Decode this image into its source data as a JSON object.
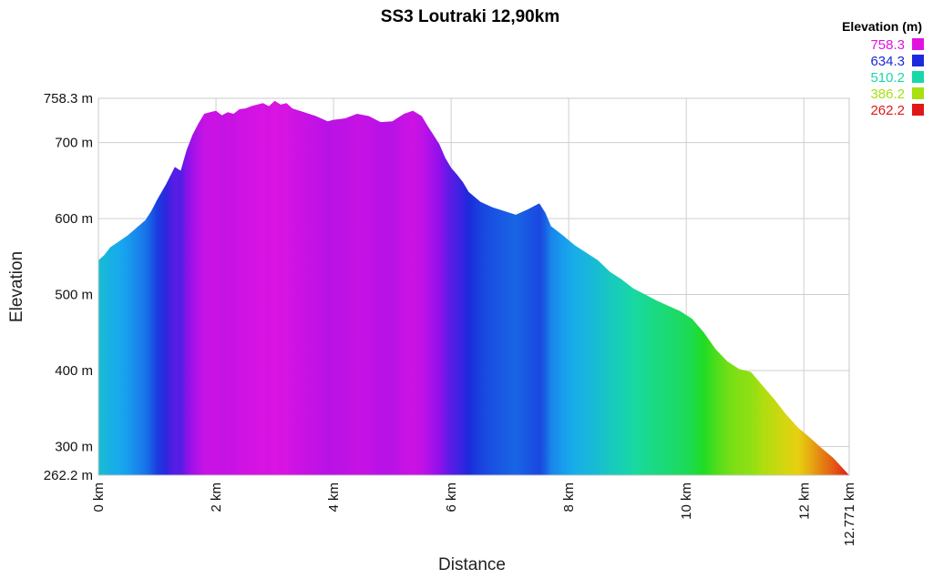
{
  "chart_data": {
    "type": "area",
    "title": "SS3 Loutraki 12,90km",
    "xlabel": "Distance",
    "ylabel": "Elevation",
    "x_unit": "km",
    "y_unit": "m",
    "xlim": [
      0,
      12.771
    ],
    "ylim": [
      262.2,
      758.3
    ],
    "grid": true,
    "x_ticks": [
      {
        "value": 0,
        "label": "0 km"
      },
      {
        "value": 2,
        "label": "2 km"
      },
      {
        "value": 4,
        "label": "4 km"
      },
      {
        "value": 6,
        "label": "6 km"
      },
      {
        "value": 8,
        "label": "8 km"
      },
      {
        "value": 10,
        "label": "10 km"
      },
      {
        "value": 12,
        "label": "12 km"
      },
      {
        "value": 12.771,
        "label": "12.771 km"
      }
    ],
    "y_ticks": [
      {
        "value": 262.2,
        "label": "262.2 m"
      },
      {
        "value": 300,
        "label": "300 m"
      },
      {
        "value": 400,
        "label": "400 m"
      },
      {
        "value": 500,
        "label": "500 m"
      },
      {
        "value": 600,
        "label": "600 m"
      },
      {
        "value": 700,
        "label": "700 m"
      },
      {
        "value": 758.3,
        "label": "758.3 m"
      }
    ],
    "legend": {
      "title": "Elevation (m)",
      "placement": "top-right",
      "entries": [
        {
          "label": "758.3",
          "color": "#e014e0"
        },
        {
          "label": "634.3",
          "color": "#1a2adc"
        },
        {
          "label": "510.2",
          "color": "#18d8a8"
        },
        {
          "label": "386.2",
          "color": "#a8e010"
        },
        {
          "label": "262.2",
          "color": "#e01818"
        }
      ]
    },
    "color_scale": [
      {
        "value": 262.2,
        "color": "#e01818"
      },
      {
        "value": 324.2,
        "color": "#e8d010"
      },
      {
        "value": 386.2,
        "color": "#a8e010"
      },
      {
        "value": 448.2,
        "color": "#20dc20"
      },
      {
        "value": 510.2,
        "color": "#18d8a8"
      },
      {
        "value": 572.2,
        "color": "#18a8f0"
      },
      {
        "value": 634.3,
        "color": "#1a2adc"
      },
      {
        "value": 696.3,
        "color": "#9010ec"
      },
      {
        "value": 758.3,
        "color": "#e014e0"
      }
    ],
    "series": [
      {
        "x": [
          0,
          0.1,
          0.2,
          0.35,
          0.5,
          0.65,
          0.8,
          0.9,
          1.0,
          1.15,
          1.3,
          1.4,
          1.5,
          1.6,
          1.7,
          1.8,
          1.9,
          2.0,
          2.1,
          2.2,
          2.3,
          2.4,
          2.5,
          2.6,
          2.7,
          2.8,
          2.9,
          3.0,
          3.1,
          3.2,
          3.3,
          3.5,
          3.7,
          3.9,
          4.0,
          4.2,
          4.4,
          4.6,
          4.8,
          5.0,
          5.2,
          5.35,
          5.5,
          5.6,
          5.7,
          5.8,
          5.9,
          6.0,
          6.1,
          6.2,
          6.3,
          6.5,
          6.7,
          6.9,
          7.1,
          7.3,
          7.5,
          7.6,
          7.7,
          7.9,
          8.1,
          8.3,
          8.5,
          8.7,
          8.9,
          9.1,
          9.3,
          9.5,
          9.7,
          9.9,
          10.1,
          10.3,
          10.5,
          10.7,
          10.9,
          11.1,
          11.3,
          11.5,
          11.7,
          11.9,
          12.1,
          12.3,
          12.5,
          12.771
        ],
        "y": [
          545,
          552,
          562,
          570,
          578,
          588,
          598,
          610,
          625,
          645,
          668,
          663,
          690,
          710,
          725,
          738,
          740,
          742,
          736,
          740,
          738,
          744,
          745,
          748,
          750,
          752,
          748,
          755,
          750,
          752,
          745,
          740,
          735,
          728,
          730,
          732,
          738,
          735,
          727,
          728,
          738,
          742,
          735,
          722,
          710,
          698,
          680,
          667,
          658,
          648,
          635,
          622,
          615,
          610,
          605,
          612,
          620,
          608,
          590,
          578,
          565,
          555,
          545,
          530,
          520,
          508,
          500,
          492,
          485,
          478,
          468,
          450,
          428,
          412,
          402,
          398,
          380,
          362,
          342,
          325,
          312,
          298,
          285,
          262.2
        ]
      }
    ]
  }
}
